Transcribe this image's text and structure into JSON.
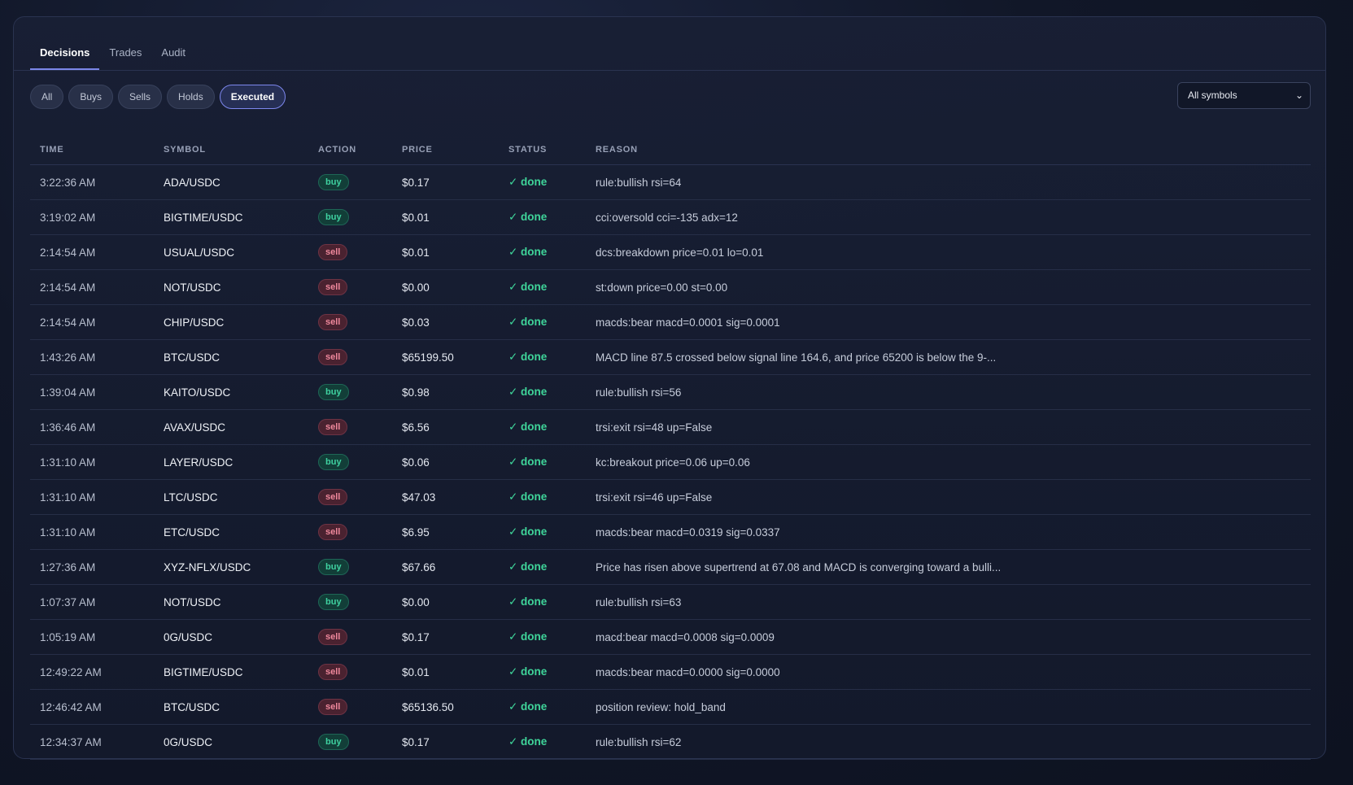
{
  "tabs": [
    {
      "label": "Decisions",
      "active": true
    },
    {
      "label": "Trades",
      "active": false
    },
    {
      "label": "Audit",
      "active": false
    }
  ],
  "filters": [
    {
      "label": "All",
      "active": false
    },
    {
      "label": "Buys",
      "active": false
    },
    {
      "label": "Sells",
      "active": false
    },
    {
      "label": "Holds",
      "active": false
    },
    {
      "label": "Executed",
      "active": true
    }
  ],
  "symbol_select": {
    "value": "All symbols",
    "icon": "chevron-down-icon"
  },
  "columns": [
    "TIME",
    "SYMBOL",
    "ACTION",
    "PRICE",
    "STATUS",
    "REASON"
  ],
  "rows": [
    {
      "time": "3:22:36 AM",
      "symbol": "ADA/USDC",
      "action": "buy",
      "price": "$0.17",
      "status": "✓ done",
      "reason": "rule:bullish rsi=64"
    },
    {
      "time": "3:19:02 AM",
      "symbol": "BIGTIME/USDC",
      "action": "buy",
      "price": "$0.01",
      "status": "✓ done",
      "reason": "cci:oversold cci=-135 adx=12"
    },
    {
      "time": "2:14:54 AM",
      "symbol": "USUAL/USDC",
      "action": "sell",
      "price": "$0.01",
      "status": "✓ done",
      "reason": "dcs:breakdown price=0.01 lo=0.01"
    },
    {
      "time": "2:14:54 AM",
      "symbol": "NOT/USDC",
      "action": "sell",
      "price": "$0.00",
      "status": "✓ done",
      "reason": "st:down price=0.00 st=0.00"
    },
    {
      "time": "2:14:54 AM",
      "symbol": "CHIP/USDC",
      "action": "sell",
      "price": "$0.03",
      "status": "✓ done",
      "reason": "macds:bear macd=0.0001 sig=0.0001"
    },
    {
      "time": "1:43:26 AM",
      "symbol": "BTC/USDC",
      "action": "sell",
      "price": "$65199.50",
      "status": "✓ done",
      "reason": "MACD line 87.5 crossed below signal line 164.6, and price 65200 is below the 9-..."
    },
    {
      "time": "1:39:04 AM",
      "symbol": "KAITO/USDC",
      "action": "buy",
      "price": "$0.98",
      "status": "✓ done",
      "reason": "rule:bullish rsi=56"
    },
    {
      "time": "1:36:46 AM",
      "symbol": "AVAX/USDC",
      "action": "sell",
      "price": "$6.56",
      "status": "✓ done",
      "reason": "trsi:exit rsi=48 up=False"
    },
    {
      "time": "1:31:10 AM",
      "symbol": "LAYER/USDC",
      "action": "buy",
      "price": "$0.06",
      "status": "✓ done",
      "reason": "kc:breakout price=0.06 up=0.06"
    },
    {
      "time": "1:31:10 AM",
      "symbol": "LTC/USDC",
      "action": "sell",
      "price": "$47.03",
      "status": "✓ done",
      "reason": "trsi:exit rsi=46 up=False"
    },
    {
      "time": "1:31:10 AM",
      "symbol": "ETC/USDC",
      "action": "sell",
      "price": "$6.95",
      "status": "✓ done",
      "reason": "macds:bear macd=0.0319 sig=0.0337"
    },
    {
      "time": "1:27:36 AM",
      "symbol": "XYZ-NFLX/USDC",
      "action": "buy",
      "price": "$67.66",
      "status": "✓ done",
      "reason": "Price has risen above supertrend at 67.08 and MACD is converging toward a bulli..."
    },
    {
      "time": "1:07:37 AM",
      "symbol": "NOT/USDC",
      "action": "buy",
      "price": "$0.00",
      "status": "✓ done",
      "reason": "rule:bullish rsi=63"
    },
    {
      "time": "1:05:19 AM",
      "symbol": "0G/USDC",
      "action": "sell",
      "price": "$0.17",
      "status": "✓ done",
      "reason": "macd:bear macd=0.0008 sig=0.0009"
    },
    {
      "time": "12:49:22 AM",
      "symbol": "BIGTIME/USDC",
      "action": "sell",
      "price": "$0.01",
      "status": "✓ done",
      "reason": "macds:bear macd=0.0000 sig=0.0000"
    },
    {
      "time": "12:46:42 AM",
      "symbol": "BTC/USDC",
      "action": "sell",
      "price": "$65136.50",
      "status": "✓ done",
      "reason": "position review: hold_band"
    },
    {
      "time": "12:34:37 AM",
      "symbol": "0G/USDC",
      "action": "buy",
      "price": "$0.17",
      "status": "✓ done",
      "reason": "rule:bullish rsi=62"
    }
  ]
}
